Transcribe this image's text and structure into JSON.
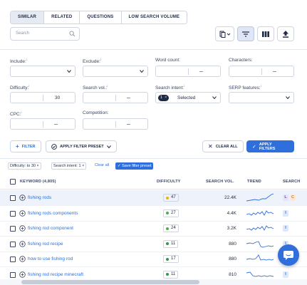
{
  "tabs": [
    "SIMILAR",
    "RELATED",
    "QUESTIONS",
    "LOW SEARCH VOLUME"
  ],
  "search": {
    "placeholder": "Search"
  },
  "filters": {
    "include_label": "Include:",
    "exclude_label": "Exclude:",
    "word_count_label": "Word count:",
    "characters_label": "Characters:",
    "difficulty_label": "Difficulty:",
    "difficulty_max": "30",
    "search_vol_label": "Search vol.:",
    "search_intent_label": "Search intent:",
    "search_intent_count": "1",
    "search_intent_value": "Selected",
    "serp_features_label": "SERP features:",
    "cpc_label": "CPC:",
    "competition_label": "Competition:",
    "info_mark": "i"
  },
  "actions": {
    "filter": "FILTER",
    "apply_preset": "APPLY FILTER PRESET",
    "clear_all": "CLEAR ALL",
    "apply_filters": "APPLY FILTERS"
  },
  "active_filters": {
    "tags": [
      "Difficulty: to 30",
      "Search intent: 1"
    ],
    "clear_all": "Clear all",
    "save_preset": "Save filter preset"
  },
  "table": {
    "headers": {
      "keyword": "KEYWORD (4,805)",
      "difficulty": "DIFFICULTY",
      "search_vol": "SEARCH VOL.",
      "trend": "TREND",
      "search_intent": "SEARCH"
    },
    "rows": [
      {
        "keyword": "fishing rods",
        "kd": "47",
        "kd_color": "#f5b400",
        "volume": "22.4K",
        "intents": [
          {
            "l": "L",
            "bg": "#e9e3fb",
            "fg": "#6b4bd6"
          },
          {
            "l": "C",
            "bg": "#fde7d2",
            "fg": "#d9791c"
          }
        ]
      },
      {
        "keyword": "fishing rods components",
        "kd": "27",
        "kd_color": "#4caf50",
        "volume": "4.4K",
        "intents": [
          {
            "l": "I",
            "bg": "#dce9fb",
            "fg": "#2f6fdb"
          }
        ]
      },
      {
        "keyword": "fishing rod component",
        "kd": "24",
        "kd_color": "#4caf50",
        "volume": "3.2K",
        "intents": [
          {
            "l": "I",
            "bg": "#dce9fb",
            "fg": "#2f6fdb"
          }
        ]
      },
      {
        "keyword": "fishing rod recipe",
        "kd": "11",
        "kd_color": "#2e9a4a",
        "volume": "880",
        "intents": [
          {
            "l": "I",
            "bg": "#dce9fb",
            "fg": "#2f6fdb"
          }
        ]
      },
      {
        "keyword": "how to use fishing rod",
        "kd": "17",
        "kd_color": "#2e9a4a",
        "volume": "880",
        "intents": [
          {
            "l": "I",
            "bg": "#dce9fb",
            "fg": "#2f6fdb"
          }
        ]
      },
      {
        "keyword": "fishing rod recipe minecraft",
        "kd": "11",
        "kd_color": "#2e9a4a",
        "volume": "810",
        "intents": [
          {
            "l": "I",
            "bg": "#dce9fb",
            "fg": "#2f6fdb"
          }
        ]
      }
    ]
  },
  "colors": {
    "accent": "#2f6fdb",
    "text": "#1f2a44",
    "border": "#cfd6e2"
  }
}
